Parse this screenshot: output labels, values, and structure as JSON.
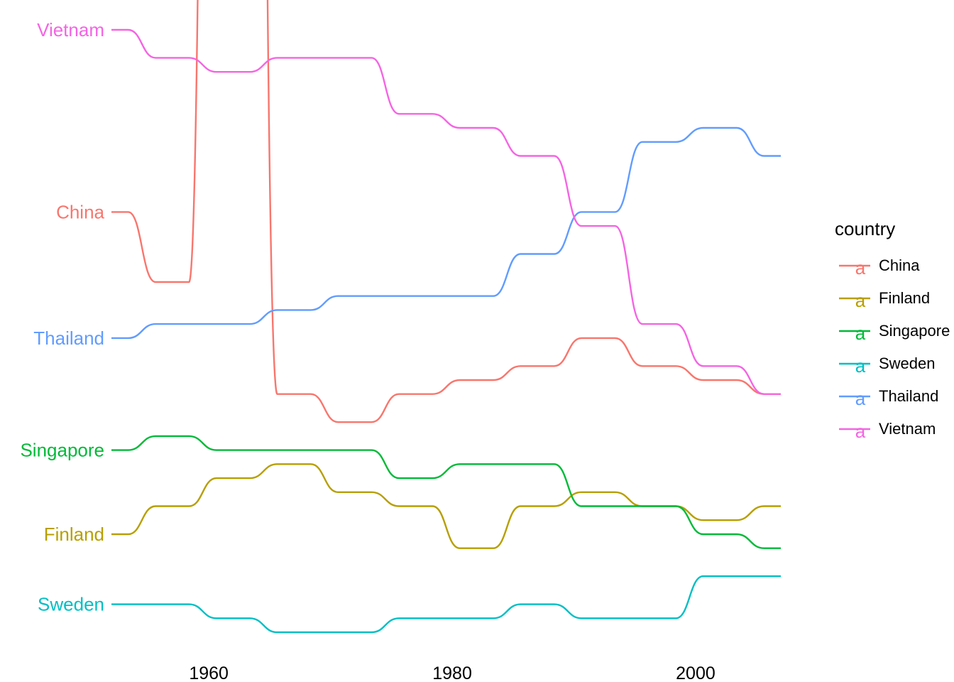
{
  "chart_data": {
    "type": "line",
    "title": "",
    "xlabel": "",
    "ylabel": "",
    "x_ticks": [
      1960,
      1980,
      2000
    ],
    "xlim": [
      1952,
      2007
    ],
    "ylim": [
      1,
      6
    ],
    "y_inverted": true,
    "y_measure": "rank",
    "x": [
      1952,
      1957,
      1962,
      1967,
      1972,
      1977,
      1982,
      1987,
      1992,
      1997,
      2002,
      2007
    ],
    "legend": {
      "title": "country",
      "position": "right",
      "key_glyph": "a"
    },
    "grid": false,
    "series": [
      {
        "name": "China",
        "color": "#F8766D",
        "label_at": "start",
        "ranks": [
          108,
          113,
          1,
          121,
          123,
          121,
          120,
          119,
          117,
          119,
          120,
          121
        ]
      },
      {
        "name": "Finland",
        "color": "#B79F00",
        "label_at": "start",
        "ranks": [
          131,
          129,
          127,
          126,
          128,
          129,
          132,
          129,
          128,
          129,
          130,
          129
        ]
      },
      {
        "name": "Singapore",
        "color": "#00BA38",
        "label_at": "start",
        "ranks": [
          125,
          124,
          125,
          125,
          125,
          127,
          126,
          126,
          129,
          129,
          131,
          132
        ]
      },
      {
        "name": "Sweden",
        "color": "#00BFC4",
        "label_at": "start",
        "ranks": [
          136,
          136,
          137,
          138,
          138,
          137,
          137,
          136,
          137,
          137,
          134,
          134
        ]
      },
      {
        "name": "Thailand",
        "color": "#619CFF",
        "label_at": "start",
        "ranks": [
          117,
          116,
          116,
          115,
          114,
          114,
          114,
          111,
          108,
          103,
          102,
          104
        ]
      },
      {
        "name": "Vietnam",
        "color": "#F564E3",
        "label_at": "start",
        "ranks": [
          95,
          97,
          98,
          97,
          97,
          101,
          102,
          104,
          109,
          116,
          119,
          121
        ]
      }
    ]
  }
}
